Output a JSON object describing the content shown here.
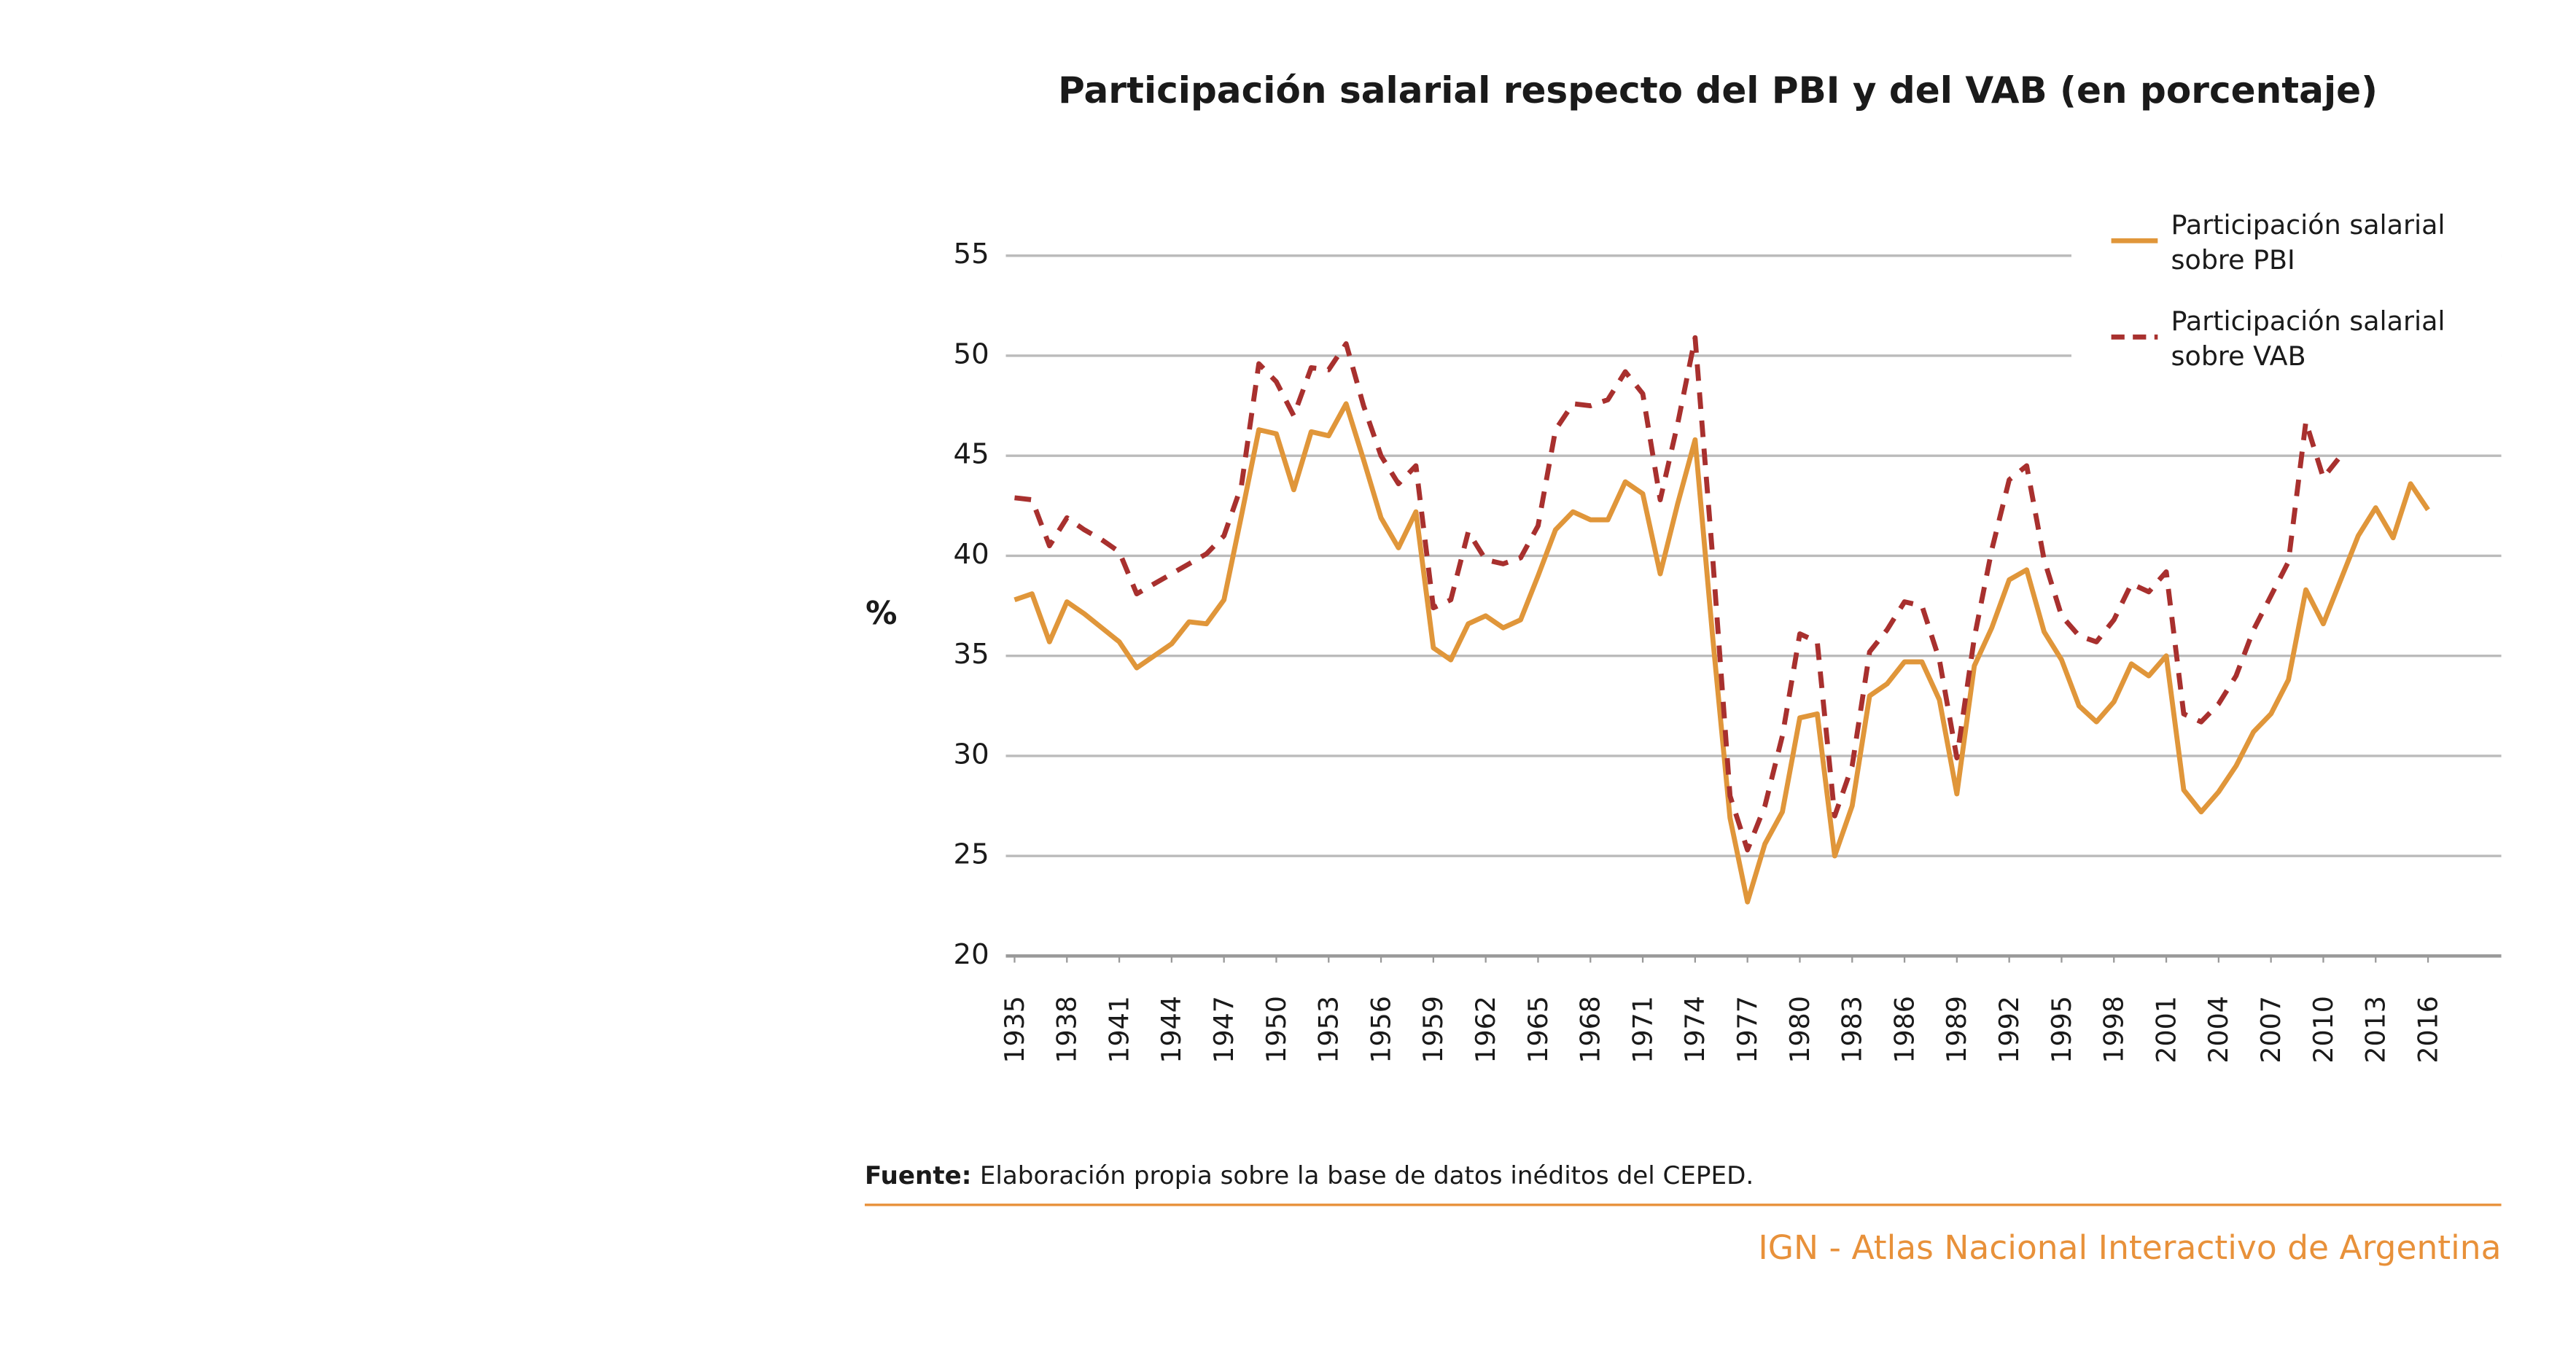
{
  "chart_data": {
    "type": "line",
    "title": "Participación salarial respecto del PBI y del VAB (en porcentaje)",
    "y_label": "%",
    "source_label": "Fuente:",
    "source_text": "Elaboración propia sobre la base de datos inéditos del CEPED.",
    "credit": "IGN - Atlas Nacional Interactivo de Argentina",
    "xlim": [
      1934.5,
      2020.2
    ],
    "xticks": [
      1935,
      1938,
      1941,
      1944,
      1947,
      1950,
      1953,
      1956,
      1959,
      1962,
      1965,
      1968,
      1971,
      1974,
      1977,
      1980,
      1983,
      1986,
      1989,
      1992,
      1995,
      1998,
      2001,
      2004,
      2007,
      2010,
      2013,
      2016
    ],
    "ylim": [
      20,
      55
    ],
    "yticks": [
      20,
      25,
      30,
      35,
      40,
      45,
      50,
      55
    ],
    "grid": true,
    "legend": "top-right",
    "series": [
      {
        "name": "Participación salarial sobre PBI",
        "color": "#e0963a",
        "dash": false,
        "x": [
          1935,
          1936,
          1937,
          1938,
          1939,
          1940,
          1941,
          1942,
          1943,
          1944,
          1945,
          1946,
          1947,
          1948,
          1949,
          1950,
          1951,
          1952,
          1953,
          1954,
          1955,
          1956,
          1957,
          1958,
          1959,
          1960,
          1961,
          1962,
          1963,
          1964,
          1965,
          1966,
          1967,
          1968,
          1969,
          1970,
          1971,
          1972,
          1973,
          1974,
          1975,
          1976,
          1977,
          1978,
          1979,
          1980,
          1981,
          1982,
          1983,
          1984,
          1985,
          1986,
          1987,
          1988,
          1989,
          1990,
          1991,
          1992,
          1993,
          1994,
          1995,
          1996,
          1997,
          1998,
          1999,
          2000,
          2001,
          2002,
          2003,
          2004,
          2005,
          2006,
          2007,
          2008,
          2009,
          2010,
          2011,
          2012,
          2013,
          2014,
          2015,
          2016
        ],
        "values": [
          37.8,
          38.1,
          35.7,
          37.7,
          37.1,
          36.4,
          35.7,
          34.4,
          35.0,
          35.6,
          36.7,
          36.6,
          37.8,
          42.0,
          46.3,
          46.1,
          43.3,
          46.2,
          46.0,
          47.6,
          44.8,
          41.9,
          40.4,
          42.2,
          35.4,
          34.8,
          36.6,
          37.0,
          36.4,
          36.8,
          39.0,
          41.3,
          42.2,
          41.8,
          41.8,
          43.7,
          43.1,
          39.1,
          42.6,
          45.8,
          36.0,
          26.9,
          22.7,
          25.6,
          27.2,
          31.9,
          32.1,
          25.0,
          27.5,
          33.0,
          33.6,
          34.7,
          34.7,
          32.8,
          28.1,
          34.5,
          36.4,
          38.8,
          39.3,
          36.2,
          34.8,
          32.5,
          31.7,
          32.7,
          34.6,
          34.0,
          35.0,
          28.3,
          27.2,
          28.2,
          29.5,
          31.2,
          32.1,
          33.8,
          38.3,
          36.6,
          38.8,
          41.0,
          42.4,
          40.9,
          43.6,
          42.3
        ]
      },
      {
        "name": "Participación salarial sobre VAB",
        "color": "#a8302e",
        "dash": true,
        "x": [
          1935,
          1936,
          1937,
          1938,
          1939,
          1940,
          1941,
          1942,
          1943,
          1944,
          1945,
          1946,
          1947,
          1948,
          1949,
          1950,
          1951,
          1952,
          1953,
          1954,
          1955,
          1956,
          1957,
          1958,
          1959,
          1960,
          1961,
          1962,
          1963,
          1964,
          1965,
          1966,
          1967,
          1968,
          1969,
          1970,
          1971,
          1972,
          1973,
          1974,
          1975,
          1976,
          1977,
          1978,
          1979,
          1980,
          1981,
          1982,
          1983,
          1984,
          1985,
          1986,
          1987,
          1988,
          1989,
          1990,
          1991,
          1992,
          1993,
          1994,
          1995,
          1996,
          1997,
          1998,
          1999,
          2000,
          2001,
          2002,
          2003,
          2004,
          2005,
          2006,
          2007,
          2008,
          2009,
          2010,
          2011
        ],
        "values": [
          42.9,
          42.8,
          40.5,
          41.9,
          41.3,
          40.8,
          40.2,
          38.1,
          38.6,
          39.1,
          39.6,
          40.1,
          41.0,
          43.5,
          49.6,
          48.7,
          47.0,
          49.4,
          49.3,
          50.6,
          47.5,
          45.0,
          43.6,
          44.5,
          37.4,
          37.8,
          41.2,
          39.8,
          39.6,
          39.9,
          41.5,
          46.3,
          47.6,
          47.5,
          47.8,
          49.2,
          48.1,
          42.8,
          46.6,
          50.9,
          40.0,
          28.0,
          25.3,
          27.5,
          31.0,
          36.1,
          35.7,
          27.0,
          29.5,
          35.2,
          36.3,
          37.7,
          37.5,
          34.8,
          29.9,
          35.9,
          40.3,
          43.8,
          44.5,
          39.8,
          37.0,
          36.0,
          35.7,
          36.8,
          38.6,
          38.2,
          39.2,
          32.1,
          31.7,
          32.6,
          34.0,
          36.3,
          38.0,
          39.7,
          46.7,
          43.9,
          45.0
        ]
      }
    ]
  }
}
